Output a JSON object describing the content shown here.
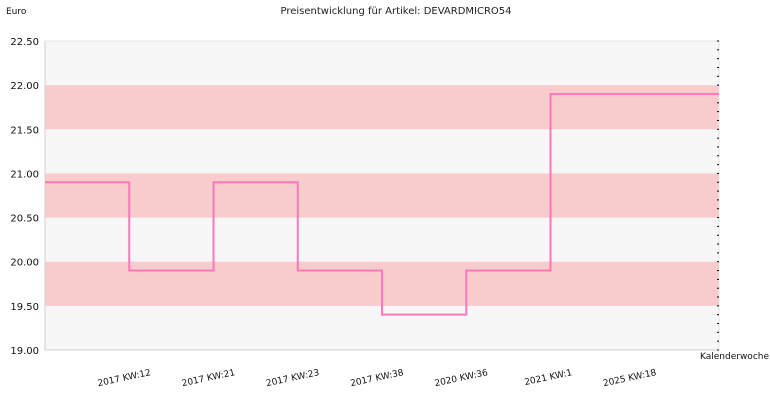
{
  "chart_data": {
    "type": "line",
    "step": true,
    "title": "Preisentwicklung für Artikel: DEVARDMICRO54",
    "ylabel": "Euro",
    "xlabel": "Kalenderwoche",
    "ylim": [
      19.0,
      22.5
    ],
    "yticks": [
      "19.00",
      "19.50",
      "20.00",
      "20.50",
      "21.00",
      "21.50",
      "22.00",
      "22.50"
    ],
    "categories": [
      "2017 KW:12",
      "2017 KW:21",
      "2017 KW:23",
      "2017 KW:38",
      "2020 KW:36",
      "2021 KW:1",
      "2025 KW:18"
    ],
    "values": [
      20.9,
      19.9,
      20.9,
      19.9,
      19.4,
      19.9,
      21.9
    ],
    "line_color": "#ff77bb",
    "band_color": "#f8cccc",
    "plot_background": "#f7f7f7",
    "grid": false
  }
}
